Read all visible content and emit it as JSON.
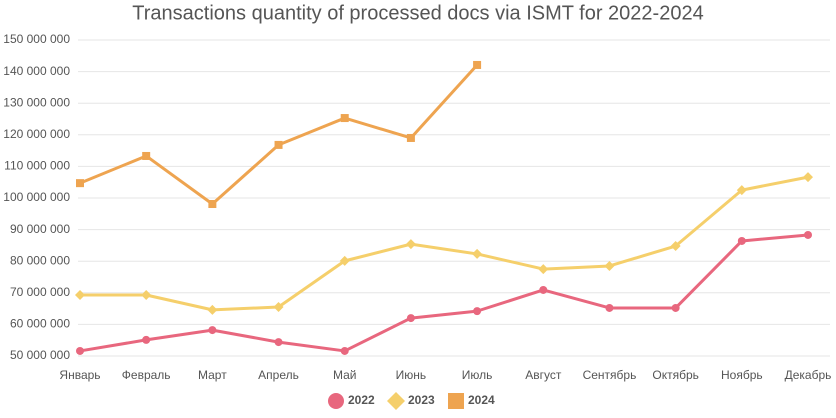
{
  "chart_data": {
    "type": "line",
    "title": "Transactions quantity of processed docs via ISMT for 2022-2024",
    "categories": [
      "Январь",
      "Февраль",
      "Март",
      "Апрель",
      "Май",
      "Июнь",
      "Июль",
      "Август",
      "Сентябрь",
      "Октябрь",
      "Ноябрь",
      "Декабрь"
    ],
    "series": [
      {
        "name": "2022",
        "color": "#e8677e",
        "marker": "circle",
        "values": [
          51600000,
          55100000,
          58200000,
          54400000,
          51600000,
          62000000,
          64200000,
          70900000,
          65200000,
          65200000,
          86400000,
          88300000
        ]
      },
      {
        "name": "2023",
        "color": "#f5cf6b",
        "marker": "diamond",
        "values": [
          69300000,
          69300000,
          64600000,
          65500000,
          80100000,
          85400000,
          82300000,
          77500000,
          78500000,
          84800000,
          102500000,
          106600000
        ]
      },
      {
        "name": "2024",
        "color": "#eea450",
        "marker": "square",
        "values": [
          104700000,
          113300000,
          98100000,
          116800000,
          125300000,
          119000000,
          142100000,
          null,
          null,
          null,
          null,
          null
        ]
      }
    ],
    "ylim": [
      50000000,
      150000000
    ],
    "yticks": [
      {
        "value": 50000000,
        "label": "50 000 000"
      },
      {
        "value": 60000000,
        "label": "60 000 000"
      },
      {
        "value": 70000000,
        "label": "70 000 000"
      },
      {
        "value": 80000000,
        "label": "80 000 000"
      },
      {
        "value": 90000000,
        "label": "90 000 000"
      },
      {
        "value": 100000000,
        "label": "100 000 000"
      },
      {
        "value": 110000000,
        "label": "110 000 000"
      },
      {
        "value": 120000000,
        "label": "120 000 000"
      },
      {
        "value": 130000000,
        "label": "130 000 000"
      },
      {
        "value": 140000000,
        "label": "140 000 000"
      },
      {
        "value": 150000000,
        "label": "150 000 000"
      }
    ],
    "grid": true,
    "legend": "bottom"
  }
}
